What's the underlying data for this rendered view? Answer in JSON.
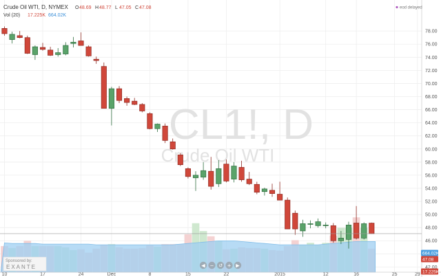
{
  "header": {
    "symbol_line": "Crude Oil WTI, D, NYMEX",
    "ohlc": [
      {
        "label": "O",
        "value": "48.69"
      },
      {
        "label": "H",
        "value": "48.77"
      },
      {
        "label": "L",
        "value": "47.05"
      },
      {
        "label": "C",
        "value": "47.08"
      }
    ],
    "volume_label": "Vol (20)",
    "volume_value": "17.225K",
    "volume_ma_value": "664.02K",
    "delay_status": "eod delayed"
  },
  "watermark": {
    "symbol": "CL1!, D",
    "name": "Crude Oil WTI"
  },
  "sponsor": {
    "label": "Sponsored by:",
    "brand": "EXANTE"
  },
  "badges": {
    "volume_ma": "664.02K",
    "last_price": "47.08",
    "volume": "17.225K"
  },
  "nav_icons": [
    "arrow-left-icon",
    "zoom-out-icon",
    "reset-icon",
    "zoom-in-icon",
    "arrow-right-icon"
  ],
  "colors": {
    "up": "#5aa36a",
    "down": "#d0473a",
    "vol_up": "#cfe8cf",
    "vol_down": "#f4d2d2",
    "volume_ma_area": "#9fcff2",
    "badge_blue": "#4a9fe0",
    "badge_red": "#d0473a"
  },
  "chart_data": {
    "type": "candlestick",
    "title": "Crude Oil WTI, D, NYMEX",
    "y_ticks": [
      "78.00",
      "76.00",
      "74.00",
      "72.00",
      "70.00",
      "68.00",
      "66.00",
      "64.00",
      "62.00",
      "60.00",
      "58.00",
      "56.00",
      "54.00",
      "52.00",
      "50.00",
      "48.00",
      "46.00",
      "44.00",
      "42.00"
    ],
    "ylim": [
      41.2,
      79.8
    ],
    "x_ticks": [
      {
        "label": "10",
        "index": 0
      },
      {
        "label": "17",
        "index": 5
      },
      {
        "label": "24",
        "index": 10
      },
      {
        "label": "Dec",
        "index": 14
      },
      {
        "label": "8",
        "index": 19
      },
      {
        "label": "15",
        "index": 24
      },
      {
        "label": "22",
        "index": 29
      },
      {
        "label": "2015",
        "index": 36
      },
      {
        "label": "12",
        "index": 42
      },
      {
        "label": "16",
        "index": 46
      },
      {
        "label": "25",
        "index": 51
      },
      {
        "label": "29",
        "index": 54
      }
    ],
    "candles": [
      {
        "o": 78.4,
        "h": 78.7,
        "l": 77.3,
        "c": 77.6
      },
      {
        "o": 76.7,
        "h": 77.9,
        "l": 76.1,
        "c": 77.5
      },
      {
        "o": 77.3,
        "h": 78.0,
        "l": 76.9,
        "c": 77.0
      },
      {
        "o": 77.0,
        "h": 77.3,
        "l": 74.5,
        "c": 74.6
      },
      {
        "o": 74.4,
        "h": 75.8,
        "l": 73.6,
        "c": 75.6
      },
      {
        "o": 75.5,
        "h": 76.2,
        "l": 75.0,
        "c": 75.2
      },
      {
        "o": 75.1,
        "h": 75.6,
        "l": 74.2,
        "c": 74.3
      },
      {
        "o": 74.4,
        "h": 75.4,
        "l": 74.1,
        "c": 74.7
      },
      {
        "o": 74.5,
        "h": 76.3,
        "l": 74.3,
        "c": 75.8
      },
      {
        "o": 76.1,
        "h": 77.1,
        "l": 75.5,
        "c": 76.3
      },
      {
        "o": 76.5,
        "h": 77.8,
        "l": 75.8,
        "c": 75.8
      },
      {
        "o": 75.6,
        "h": 75.8,
        "l": 74.1,
        "c": 74.2
      },
      {
        "o": 73.7,
        "h": 74.1,
        "l": 73.0,
        "c": 73.5
      },
      {
        "o": 72.6,
        "h": 73.2,
        "l": 66.2,
        "c": 66.2
      },
      {
        "o": 66.2,
        "h": 69.5,
        "l": 63.6,
        "c": 69.2
      },
      {
        "o": 69.2,
        "h": 69.6,
        "l": 67.0,
        "c": 67.4
      },
      {
        "o": 67.7,
        "h": 68.0,
        "l": 66.6,
        "c": 67.1
      },
      {
        "o": 67.3,
        "h": 67.8,
        "l": 66.7,
        "c": 66.8
      },
      {
        "o": 66.8,
        "h": 67.0,
        "l": 65.6,
        "c": 65.8
      },
      {
        "o": 65.4,
        "h": 65.6,
        "l": 63.0,
        "c": 63.1
      },
      {
        "o": 63.1,
        "h": 63.9,
        "l": 62.6,
        "c": 63.8
      },
      {
        "o": 63.5,
        "h": 63.9,
        "l": 60.9,
        "c": 61.3
      },
      {
        "o": 61.1,
        "h": 61.6,
        "l": 59.9,
        "c": 60.0
      },
      {
        "o": 59.1,
        "h": 59.4,
        "l": 57.4,
        "c": 57.6
      },
      {
        "o": 57.0,
        "h": 57.2,
        "l": 55.5,
        "c": 55.8
      },
      {
        "o": 55.6,
        "h": 56.6,
        "l": 53.6,
        "c": 56.0
      },
      {
        "o": 55.7,
        "h": 58.0,
        "l": 55.3,
        "c": 56.7
      },
      {
        "o": 56.6,
        "h": 58.8,
        "l": 53.8,
        "c": 54.3
      },
      {
        "o": 54.7,
        "h": 58.3,
        "l": 54.2,
        "c": 57.0
      },
      {
        "o": 57.7,
        "h": 58.4,
        "l": 54.9,
        "c": 55.1
      },
      {
        "o": 55.4,
        "h": 58.0,
        "l": 54.9,
        "c": 57.4
      },
      {
        "o": 57.2,
        "h": 58.2,
        "l": 55.0,
        "c": 55.3
      },
      {
        "o": 55.4,
        "h": 56.5,
        "l": 54.5,
        "c": 54.7
      },
      {
        "o": 54.6,
        "h": 55.0,
        "l": 53.1,
        "c": 53.4
      },
      {
        "o": 53.5,
        "h": 54.1,
        "l": 52.9,
        "c": 53.9
      },
      {
        "o": 53.7,
        "h": 54.7,
        "l": 52.7,
        "c": 53.2
      },
      {
        "o": 53.1,
        "h": 55.0,
        "l": 52.3,
        "c": 52.2
      },
      {
        "o": 52.2,
        "h": 52.6,
        "l": 47.8,
        "c": 47.8
      },
      {
        "o": 50.2,
        "h": 50.6,
        "l": 46.9,
        "c": 47.8
      },
      {
        "o": 47.5,
        "h": 49.2,
        "l": 46.6,
        "c": 48.6
      },
      {
        "o": 48.6,
        "h": 49.1,
        "l": 47.9,
        "c": 48.6
      },
      {
        "o": 48.3,
        "h": 49.4,
        "l": 48.0,
        "c": 48.9
      },
      {
        "o": 48.3,
        "h": 48.8,
        "l": 47.9,
        "c": 48.4
      },
      {
        "o": 48.3,
        "h": 48.7,
        "l": 45.7,
        "c": 46.0
      },
      {
        "o": 46.0,
        "h": 47.5,
        "l": 45.5,
        "c": 46.4
      },
      {
        "o": 46.2,
        "h": 48.9,
        "l": 44.8,
        "c": 48.4
      },
      {
        "o": 48.7,
        "h": 51.3,
        "l": 46.2,
        "c": 46.4
      },
      {
        "o": 46.4,
        "h": 48.8,
        "l": 46.2,
        "c": 48.6
      },
      {
        "o": 48.69,
        "h": 48.77,
        "l": 47.05,
        "c": 47.08
      }
    ],
    "volume": [
      0.4,
      0.37,
      0.4,
      0.48,
      0.4,
      0.4,
      0.4,
      0.4,
      0.38,
      0.34,
      0.35,
      0.3,
      0.36,
      0.42,
      0.43,
      0.38,
      0.36,
      0.36,
      0.37,
      0.41,
      0.39,
      0.43,
      0.43,
      0.43,
      0.58,
      0.75,
      0.63,
      0.55,
      0.48,
      0.35,
      0.36,
      0.38,
      0.37,
      0.37,
      0.36,
      0.34,
      0.33,
      0.4,
      0.49,
      0.42,
      0.45,
      0.42,
      0.45,
      0.56,
      0.68,
      0.68,
      0.84,
      0.68,
      0.36
    ],
    "volume_ma": [
      0.45,
      0.44,
      0.44,
      0.44,
      0.44,
      0.43,
      0.43,
      0.43,
      0.43,
      0.43,
      0.43,
      0.43,
      0.42,
      0.42,
      0.42,
      0.42,
      0.42,
      0.42,
      0.42,
      0.42,
      0.42,
      0.42,
      0.42,
      0.43,
      0.44,
      0.45,
      0.46,
      0.47,
      0.48,
      0.48,
      0.48,
      0.47,
      0.46,
      0.45,
      0.44,
      0.43,
      0.42,
      0.42,
      0.42,
      0.42,
      0.42,
      0.42,
      0.43,
      0.44,
      0.45,
      0.46,
      0.47,
      0.47,
      0.47
    ]
  }
}
